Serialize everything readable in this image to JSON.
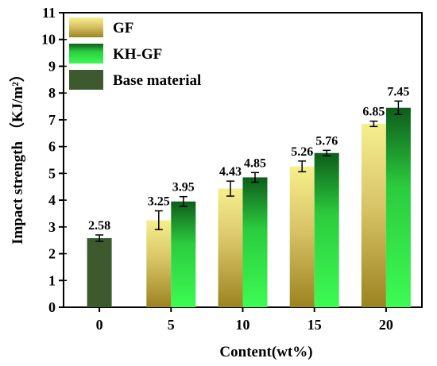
{
  "chart_data": {
    "type": "bar",
    "xlabel": "Content(wt%)",
    "ylabel": "Impact strength （KJ/m²）",
    "ylim": [
      0,
      11
    ],
    "yticks": [
      0,
      1,
      2,
      3,
      4,
      5,
      6,
      7,
      8,
      9,
      10,
      11
    ],
    "categories": [
      "0",
      "5",
      "10",
      "15",
      "20"
    ],
    "legend_position": "top-left",
    "grid": false,
    "series": [
      {
        "name": "GF",
        "colors": {
          "top": "#f6ef8e",
          "mid": "#d8c466",
          "bottom": "#9c8321"
        },
        "values": [
          null,
          3.25,
          4.43,
          5.26,
          6.85
        ],
        "errors": [
          null,
          0.35,
          0.28,
          0.2,
          0.1
        ],
        "labels": [
          null,
          "3.25",
          "4.43",
          "5.26",
          "6.85"
        ]
      },
      {
        "name": "KH-GF",
        "colors": {
          "top": "#0e5c1b",
          "mid": "#2bcc3e",
          "bottom": "#3dfb53"
        },
        "values": [
          null,
          3.95,
          4.85,
          5.76,
          7.45
        ],
        "errors": [
          null,
          0.18,
          0.18,
          0.1,
          0.25
        ],
        "labels": [
          null,
          "3.95",
          "4.85",
          "5.76",
          "7.45"
        ]
      },
      {
        "name": "Base material",
        "colors": {
          "fill": "#3c5a2d"
        },
        "values": [
          2.58,
          null,
          null,
          null,
          null
        ],
        "errors": [
          0.12,
          null,
          null,
          null,
          null
        ],
        "labels": [
          "2.58",
          null,
          null,
          null,
          null
        ]
      }
    ]
  }
}
